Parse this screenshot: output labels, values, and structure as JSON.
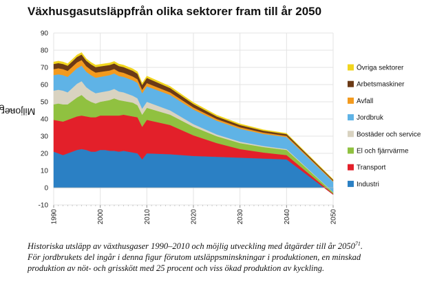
{
  "title": "Växhusgasutsläppfrån olika sektorer fram till år 2050",
  "ylabel_main": "Miljoner ton CO",
  "ylabel_sub": "2",
  "ylabel_tail": "e",
  "caption": {
    "line1_a": "Historiska utsläpp av växthusgaser 1990–2010 och möjlig utveckling med åtgärder till år 2050",
    "line1_sup": "71",
    "line1_b": ".",
    "line2": "För jordbrukets del ingår i denna figur förutom utsläppsminskningar i produktionen, en minskad",
    "line3": "produktion av nöt- och grisskött med 25 procent och viss ökad produktion av kyckling."
  },
  "chart_data": {
    "type": "area",
    "stacked": true,
    "xlim": [
      1990,
      2050
    ],
    "ylim": [
      -10,
      90
    ],
    "yticks": [
      -10,
      0,
      10,
      20,
      30,
      40,
      50,
      60,
      70,
      80,
      90
    ],
    "xticks": [
      1990,
      2000,
      2010,
      2020,
      2030,
      2040,
      2050
    ],
    "grid": true,
    "legend_position": "right",
    "x": [
      1990,
      1991,
      1992,
      1993,
      1994,
      1995,
      1996,
      1997,
      1998,
      1999,
      2000,
      2001,
      2002,
      2003,
      2004,
      2005,
      2006,
      2007,
      2008,
      2009,
      2010,
      2015,
      2020,
      2025,
      2030,
      2035,
      2040,
      2050
    ],
    "series": [
      {
        "name": "Industri",
        "color": "#2b80c4",
        "values": [
          21,
          20,
          19,
          20,
          21,
          22,
          22.5,
          22,
          21,
          21,
          22,
          22,
          21.5,
          21.5,
          21,
          21.5,
          21,
          20.5,
          20,
          16.5,
          20,
          19.5,
          18.5,
          18,
          17.5,
          17,
          16.5,
          -4
        ]
      },
      {
        "name": "Transport",
        "color": "#e3202a",
        "values": [
          18.5,
          19,
          19.5,
          19.5,
          19.5,
          19.5,
          19.5,
          19.5,
          20,
          20,
          20,
          20,
          20.5,
          20.5,
          21,
          21,
          21,
          21,
          21,
          19,
          19.5,
          17,
          12,
          8,
          5,
          3.5,
          2.5,
          0.5
        ]
      },
      {
        "name": "El och fjärrvärme",
        "color": "#90c140",
        "values": [
          9,
          10,
          10,
          9,
          10,
          11,
          12,
          10,
          9,
          8,
          8,
          8.5,
          9,
          10,
          9,
          8,
          8,
          8,
          7,
          7,
          7,
          6,
          5,
          4,
          3.5,
          3.2,
          3,
          0.8
        ]
      },
      {
        "name": "Bostäder och service",
        "color": "#d9d3c1",
        "values": [
          8,
          8,
          8,
          7,
          7.5,
          8,
          8,
          7,
          6.5,
          6,
          5.5,
          5.5,
          5.5,
          5.5,
          5,
          5,
          4.5,
          4,
          4,
          3.5,
          3.5,
          2.5,
          1.5,
          1,
          0.8,
          0.6,
          0.5,
          0.2
        ]
      },
      {
        "name": "Jordbruk",
        "color": "#5fb3e6",
        "values": [
          9,
          9,
          9,
          9,
          9,
          9,
          9,
          9,
          9,
          9,
          9,
          9,
          9,
          9,
          9,
          9,
          9,
          9,
          9,
          9,
          9,
          9,
          8.5,
          8,
          7.5,
          7,
          7,
          6
        ]
      },
      {
        "name": "Avfall",
        "color": "#f39a1e",
        "values": [
          3.5,
          3.5,
          3.5,
          3.5,
          3.4,
          3.4,
          3.3,
          3.2,
          3.1,
          3,
          2.9,
          2.8,
          2.7,
          2.6,
          2.5,
          2.4,
          2.3,
          2.2,
          2.1,
          2,
          1.9,
          1.5,
          1.2,
          1,
          0.9,
          0.8,
          0.7,
          0.5
        ]
      },
      {
        "name": "Arbetsmaskiner",
        "color": "#6b3a16",
        "values": [
          3,
          3,
          3,
          3,
          3.1,
          3.2,
          3.2,
          3.2,
          3.2,
          3.2,
          3.2,
          3.2,
          3.2,
          3.2,
          3.3,
          3.3,
          3.3,
          3.3,
          3.2,
          2.8,
          3,
          2.5,
          2,
          1.5,
          1.3,
          1.1,
          1,
          0.6
        ]
      },
      {
        "name": "Övriga sektorer",
        "color": "#f1d51e",
        "values": [
          1.2,
          1.2,
          1.2,
          1.2,
          1.2,
          1.2,
          1.2,
          1.2,
          1.2,
          1.2,
          1.2,
          1.2,
          1.2,
          1.2,
          1.2,
          1.2,
          1.2,
          1.2,
          1.2,
          1.1,
          1.1,
          1,
          0.9,
          0.8,
          0.7,
          0.6,
          0.5,
          0.3
        ]
      }
    ],
    "legend_order": [
      "Övriga sektorer",
      "Arbetsmaskiner",
      "Avfall",
      "Jordbruk",
      "Bostäder och service",
      "El och fjärrvärme",
      "Transport",
      "Industri"
    ]
  }
}
